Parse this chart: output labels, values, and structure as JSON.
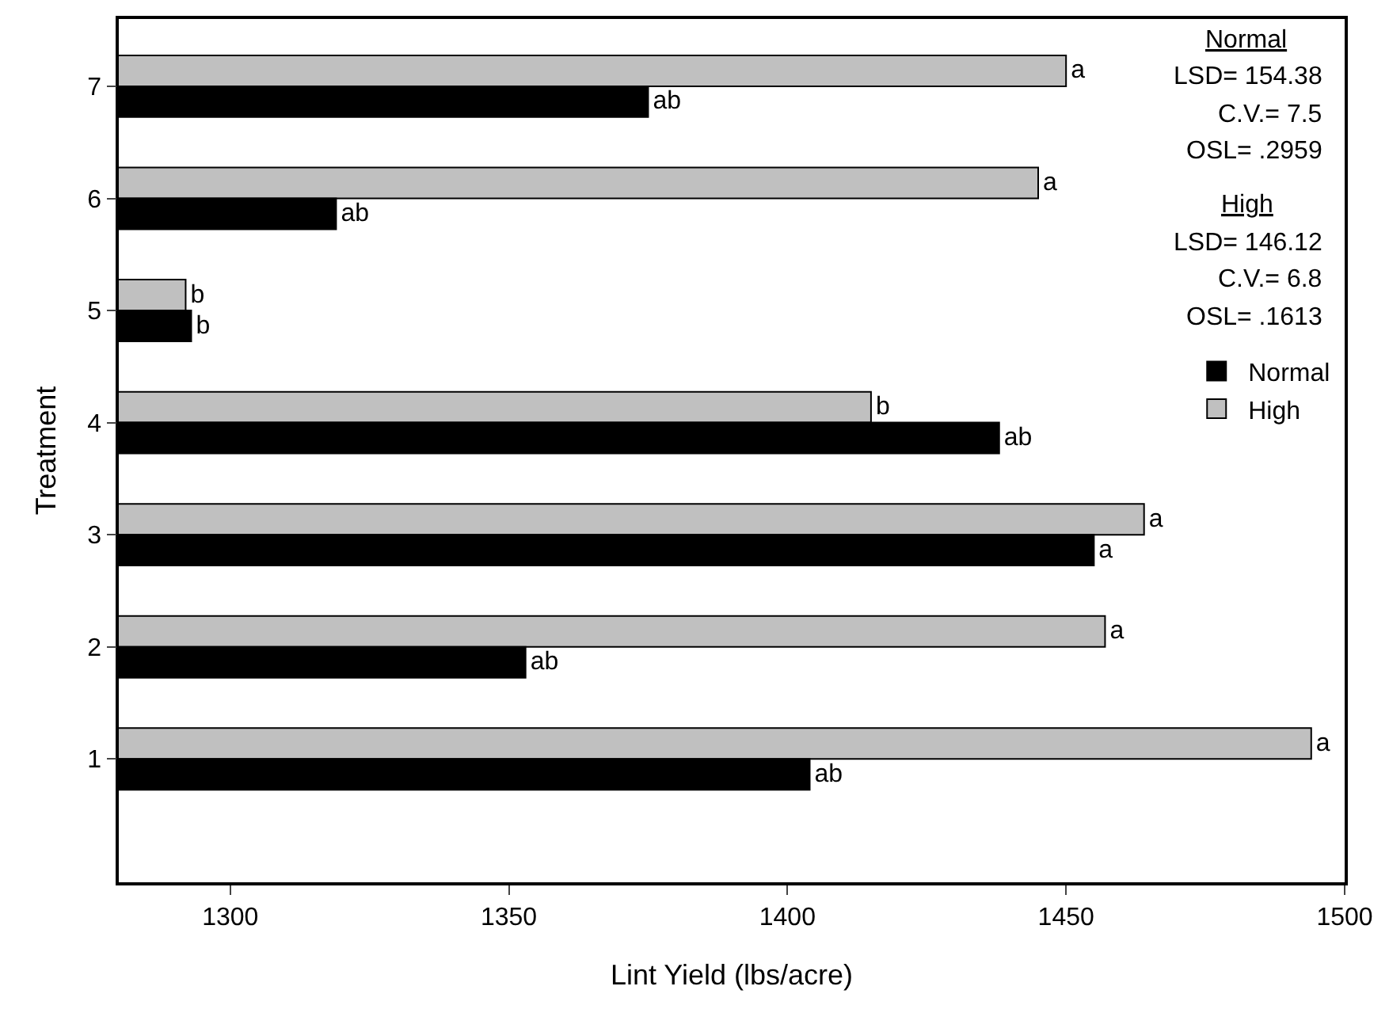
{
  "chart_data": {
    "type": "bar",
    "orientation": "horizontal",
    "xlabel": "Lint Yield (lbs/acre)",
    "ylabel": "Treatment",
    "categories": [
      "7",
      "6",
      "5",
      "4",
      "3",
      "2",
      "1"
    ],
    "series": [
      {
        "name": "Normal",
        "color": "#000000",
        "values": [
          1375,
          1319,
          1293,
          1438,
          1455,
          1353,
          1404
        ],
        "value_labels": [
          "ab",
          "ab",
          "b",
          "ab",
          "a",
          "ab",
          "ab"
        ]
      },
      {
        "name": "High",
        "color": "#c0c0c0",
        "values": [
          1450,
          1445,
          1292,
          1415,
          1464,
          1457,
          1494
        ],
        "value_labels": [
          "a",
          "a",
          "b",
          "b",
          "a",
          "a",
          "a"
        ]
      }
    ],
    "xlim": [
      1280,
      1500
    ],
    "xticks": [
      1300,
      1350,
      1400,
      1450,
      1500
    ],
    "annotations": [
      "Normal",
      "LSD= 154.38",
      "C.V.= 7.5",
      "OSL= .2959",
      "High",
      "LSD= 146.12",
      "C.V.= 6.8",
      "OSL= .1613"
    ],
    "legend": "right"
  }
}
